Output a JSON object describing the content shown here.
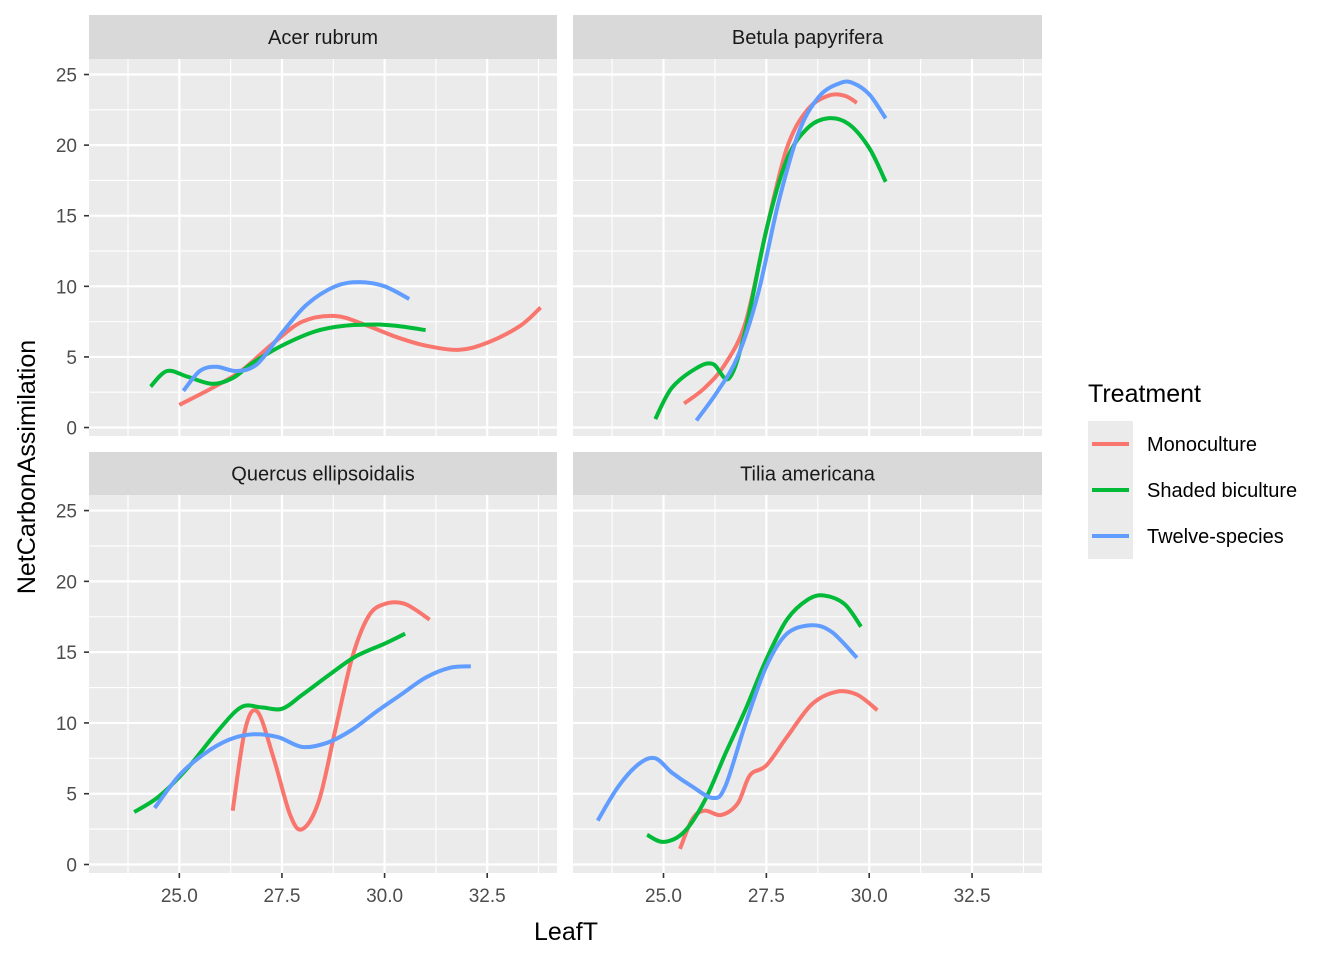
{
  "chart_data": {
    "type": "line",
    "xlabel": "LeafT",
    "ylabel": "NetCarbonAssimilation",
    "xlim": [
      22.8,
      34.2
    ],
    "ylim": [
      -0.6,
      26.1
    ],
    "x_ticks": [
      25.0,
      27.5,
      30.0,
      32.5
    ],
    "x_tick_labels": [
      "25.0",
      "27.5",
      "30.0",
      "32.5"
    ],
    "y_ticks": [
      0,
      5,
      10,
      15,
      20,
      25
    ],
    "y_tick_labels": [
      "0",
      "5",
      "10",
      "15",
      "20",
      "25"
    ],
    "grid": true,
    "legend": {
      "title": "Treatment",
      "position": "right",
      "entries": [
        {
          "name": "Monoculture",
          "color": "#F8766D"
        },
        {
          "name": "Shaded biculture",
          "color": "#00BA38"
        },
        {
          "name": "Twelve-species",
          "color": "#619CFF"
        }
      ]
    },
    "panels": [
      {
        "title": "Acer rubrum",
        "series": [
          {
            "name": "Monoculture",
            "color": "#F8766D",
            "x": [
              25.0,
              25.8,
              26.5,
              27.3,
              28.0,
              28.8,
              29.5,
              30.3,
              31.0,
              31.8,
              32.5,
              33.3,
              33.8
            ],
            "y": [
              1.6,
              2.8,
              4.0,
              6.0,
              7.5,
              7.9,
              7.3,
              6.4,
              5.8,
              5.5,
              6.0,
              7.2,
              8.5
            ]
          },
          {
            "name": "Shaded biculture",
            "color": "#00BA38",
            "x": [
              24.3,
              24.7,
              25.2,
              25.8,
              26.3,
              26.8,
              27.5,
              28.3,
              29.0,
              29.8,
              30.3,
              31.0
            ],
            "y": [
              2.9,
              4.0,
              3.6,
              3.1,
              3.5,
              4.6,
              5.8,
              6.8,
              7.2,
              7.3,
              7.2,
              6.9
            ]
          },
          {
            "name": "Twelve-species",
            "color": "#619CFF",
            "x": [
              25.1,
              25.5,
              25.9,
              26.4,
              26.9,
              27.5,
              28.1,
              28.8,
              29.4,
              30.0,
              30.6
            ],
            "y": [
              2.6,
              4.0,
              4.3,
              4.0,
              4.5,
              6.7,
              8.7,
              10.0,
              10.3,
              10.0,
              9.1
            ]
          }
        ]
      },
      {
        "title": "Betula papyrifera",
        "series": [
          {
            "name": "Monoculture",
            "color": "#F8766D",
            "x": [
              25.5,
              26.0,
              26.5,
              27.0,
              27.5,
              28.0,
              28.5,
              29.0,
              29.4,
              29.7
            ],
            "y": [
              1.7,
              2.8,
              4.5,
              7.5,
              14.0,
              19.8,
              22.5,
              23.5,
              23.5,
              23.0
            ]
          },
          {
            "name": "Shaded biculture",
            "color": "#00BA38",
            "x": [
              24.8,
              25.2,
              25.8,
              26.2,
              26.6,
              27.0,
              27.5,
              28.0,
              28.5,
              29.0,
              29.5,
              30.0,
              30.4
            ],
            "y": [
              0.6,
              2.8,
              4.2,
              4.5,
              3.5,
              7.0,
              14.0,
              19.0,
              21.2,
              21.9,
              21.5,
              19.8,
              17.4
            ]
          },
          {
            "name": "Twelve-species",
            "color": "#619CFF",
            "x": [
              25.8,
              26.3,
              26.8,
              27.3,
              27.8,
              28.3,
              28.8,
              29.3,
              29.6,
              30.0,
              30.4
            ],
            "y": [
              0.5,
              2.5,
              5.0,
              9.5,
              16.0,
              21.0,
              23.5,
              24.4,
              24.4,
              23.6,
              21.9
            ]
          }
        ]
      },
      {
        "title": "Quercus ellipsoidalis",
        "series": [
          {
            "name": "Monoculture",
            "color": "#F8766D",
            "x": [
              26.3,
              26.6,
              26.9,
              27.3,
              27.7,
              28.0,
              28.4,
              28.8,
              29.2,
              29.6,
              30.0,
              30.5,
              31.1
            ],
            "y": [
              3.8,
              9.5,
              10.8,
              7.5,
              3.5,
              2.5,
              4.5,
              9.5,
              14.5,
              17.5,
              18.4,
              18.4,
              17.3
            ]
          },
          {
            "name": "Shaded biculture",
            "color": "#00BA38",
            "x": [
              23.9,
              24.5,
              25.2,
              25.9,
              26.5,
              27.0,
              27.5,
              28.0,
              28.7,
              29.3,
              30.0,
              30.5
            ],
            "y": [
              3.7,
              4.8,
              6.8,
              9.3,
              11.1,
              11.1,
              11.0,
              12.0,
              13.5,
              14.7,
              15.6,
              16.3
            ]
          },
          {
            "name": "Twelve-species",
            "color": "#619CFF",
            "x": [
              24.4,
              25.0,
              25.6,
              26.2,
              26.8,
              27.4,
              28.0,
              28.6,
              29.2,
              29.8,
              30.4,
              31.0,
              31.6,
              32.1
            ],
            "y": [
              4.0,
              6.3,
              7.8,
              8.8,
              9.2,
              9.0,
              8.3,
              8.6,
              9.5,
              10.8,
              12.0,
              13.2,
              13.9,
              14.0
            ]
          }
        ]
      },
      {
        "title": "Tilia americana",
        "series": [
          {
            "name": "Monoculture",
            "color": "#F8766D",
            "x": [
              25.4,
              25.7,
              26.0,
              26.4,
              26.8,
              27.1,
              27.5,
              28.0,
              28.6,
              29.2,
              29.7,
              30.2
            ],
            "y": [
              1.1,
              3.2,
              3.8,
              3.5,
              4.3,
              6.3,
              7.0,
              9.0,
              11.3,
              12.2,
              12.0,
              10.9
            ]
          },
          {
            "name": "Shaded biculture",
            "color": "#00BA38",
            "x": [
              24.6,
              25.0,
              25.5,
              26.0,
              26.5,
              27.0,
              27.5,
              28.0,
              28.5,
              28.9,
              29.4,
              29.8
            ],
            "y": [
              2.1,
              1.6,
              2.3,
              4.5,
              7.8,
              11.0,
              14.5,
              17.3,
              18.7,
              19.0,
              18.4,
              16.8
            ]
          },
          {
            "name": "Twelve-species",
            "color": "#619CFF",
            "x": [
              23.4,
              23.9,
              24.4,
              24.8,
              25.2,
              25.7,
              26.2,
              26.5,
              27.0,
              27.5,
              28.0,
              28.6,
              29.1,
              29.7
            ],
            "y": [
              3.1,
              5.5,
              7.1,
              7.5,
              6.5,
              5.5,
              4.7,
              5.5,
              10.0,
              14.0,
              16.3,
              16.9,
              16.4,
              14.6
            ]
          }
        ]
      }
    ]
  }
}
